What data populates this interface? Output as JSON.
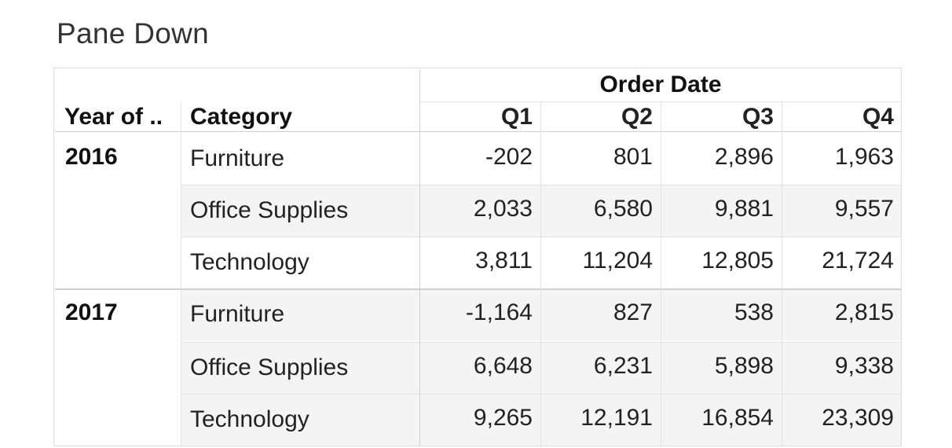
{
  "title": "Pane Down",
  "header": {
    "column_group": "Order Date",
    "row_header_1": "Year of ..",
    "row_header_2": "Category",
    "quarters": [
      "Q1",
      "Q2",
      "Q3",
      "Q4"
    ]
  },
  "rows": [
    {
      "year": "2016",
      "category": "Furniture",
      "values": [
        "-202",
        "801",
        "2,896",
        "1,963"
      ]
    },
    {
      "year": "",
      "category": "Office Supplies",
      "values": [
        "2,033",
        "6,580",
        "9,881",
        "9,557"
      ]
    },
    {
      "year": "",
      "category": "Technology",
      "values": [
        "3,811",
        "11,204",
        "12,805",
        "21,724"
      ]
    },
    {
      "year": "2017",
      "category": "Furniture",
      "values": [
        "-1,164",
        "827",
        "538",
        "2,815"
      ]
    },
    {
      "year": "",
      "category": "Office Supplies",
      "values": [
        "6,648",
        "6,231",
        "5,898",
        "9,338"
      ]
    },
    {
      "year": "",
      "category": "Technology",
      "values": [
        "9,265",
        "12,191",
        "16,854",
        "23,309"
      ]
    }
  ],
  "chart_data": {
    "type": "table",
    "title": "Pane Down",
    "column_group": "Order Date",
    "columns": [
      "Q1",
      "Q2",
      "Q3",
      "Q4"
    ],
    "row_dimensions": [
      "Year of ..",
      "Category"
    ],
    "rows": [
      {
        "year": "2016",
        "category": "Furniture",
        "values": [
          -202,
          801,
          2896,
          1963
        ]
      },
      {
        "year": "2016",
        "category": "Office Supplies",
        "values": [
          2033,
          6580,
          9881,
          9557
        ]
      },
      {
        "year": "2016",
        "category": "Technology",
        "values": [
          3811,
          11204,
          12805,
          21724
        ]
      },
      {
        "year": "2017",
        "category": "Furniture",
        "values": [
          -1164,
          827,
          538,
          2815
        ]
      },
      {
        "year": "2017",
        "category": "Office Supplies",
        "values": [
          6648,
          6231,
          5898,
          9338
        ]
      },
      {
        "year": "2017",
        "category": "Technology",
        "values": [
          9265,
          12191,
          16854,
          23309
        ]
      }
    ]
  }
}
